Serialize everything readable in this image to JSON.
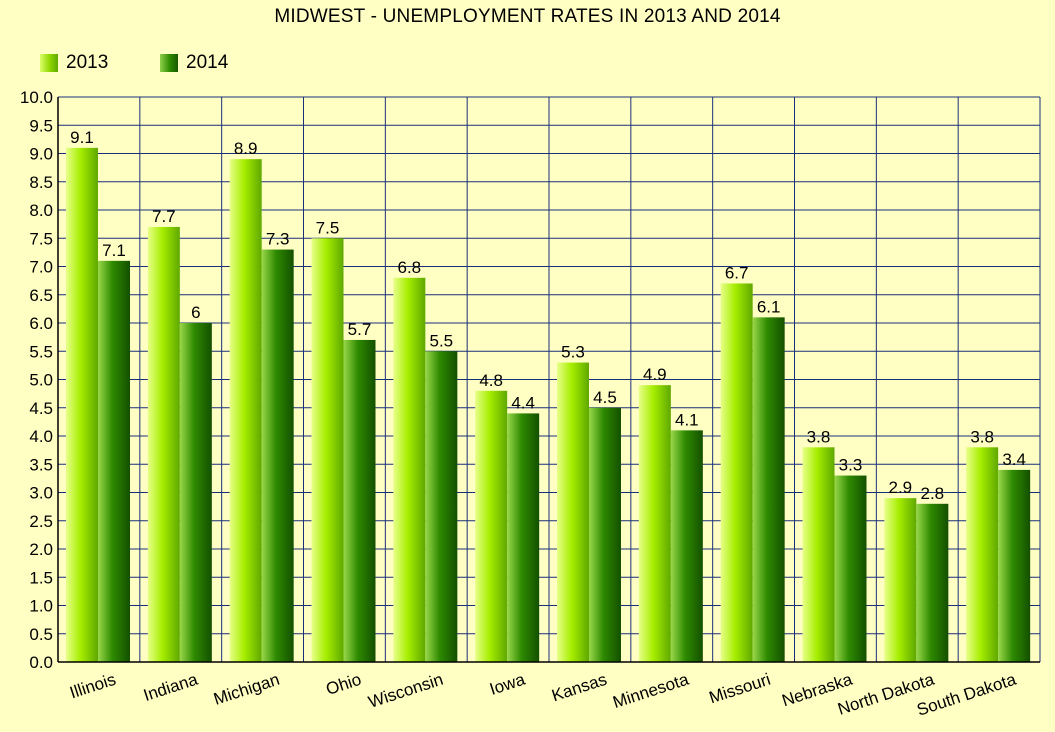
{
  "chart_data": {
    "type": "bar",
    "title": "MIDWEST - UNEMPLOYMENT RATES IN 2013 AND 2014",
    "categories": [
      "Illinois",
      "Indiana",
      "Michigan",
      "Ohio",
      "Wisconsin",
      "Iowa",
      "Kansas",
      "Minnesota",
      "Missouri",
      "Nebraska",
      "North Dakota",
      "South Dakota"
    ],
    "series": [
      {
        "name": "2013",
        "values": [
          9.1,
          7.7,
          8.9,
          7.5,
          6.8,
          4.8,
          5.3,
          4.9,
          6.7,
          3.8,
          2.9,
          3.8
        ],
        "data_labels": [
          "9.1",
          "7.7",
          "8.9",
          "7.5",
          "6.8",
          "4.8",
          "5.3",
          "4.9",
          "6.7",
          "3.8",
          "2.9",
          "3.8"
        ],
        "color": "#a6ee00"
      },
      {
        "name": "2014",
        "values": [
          7.1,
          6.0,
          7.3,
          5.7,
          5.5,
          4.4,
          4.5,
          4.1,
          6.1,
          3.3,
          2.8,
          3.4
        ],
        "data_labels": [
          "7.1",
          "6",
          "7.3",
          "5.7",
          "5.5",
          "4.4",
          "4.5",
          "4.1",
          "6.1",
          "3.3",
          "2.8",
          "3.4"
        ],
        "color": "#2e8a00"
      }
    ],
    "y_ticks": [
      "0.0",
      "0.5",
      "1.0",
      "1.5",
      "2.0",
      "2.5",
      "3.0",
      "3.5",
      "4.0",
      "4.5",
      "5.0",
      "5.5",
      "6.0",
      "6.5",
      "7.0",
      "7.5",
      "8.0",
      "8.5",
      "9.0",
      "9.5",
      "10.0"
    ],
    "ylim": [
      0,
      10
    ],
    "xlabel": "",
    "ylabel": "",
    "grid": true,
    "legend_position": "top-left",
    "background_color": "#ffffc4",
    "grid_color": "#1a2f7a"
  }
}
